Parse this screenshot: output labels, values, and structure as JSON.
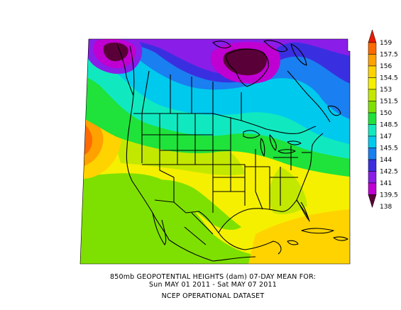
{
  "caption": {
    "line1": "850mb GEOPOTENTIAL HEIGHTS (dam)    07-DAY MEAN FOR:",
    "line2": "Sun MAY 01 2011 - Sat MAY 07 2011",
    "line3": "NCEP OPERATIONAL DATASET"
  },
  "colorbar": {
    "levels": [
      "159",
      "157.5",
      "156",
      "154.5",
      "153",
      "151.5",
      "150",
      "148.5",
      "147",
      "145.5",
      "144",
      "142.5",
      "141",
      "139.5",
      "138"
    ],
    "colors": [
      "#e81c00",
      "#ff6a00",
      "#ffa200",
      "#ffd300",
      "#f5f000",
      "#c3e800",
      "#7ee000",
      "#1fe23a",
      "#10e9c0",
      "#00c9ee",
      "#1a7ff0",
      "#3a2fe0",
      "#8a1de8",
      "#c000d2",
      "#5a0038"
    ]
  },
  "map": {
    "land_color": "#7ee000",
    "ocean_color": "#f5f000"
  }
}
